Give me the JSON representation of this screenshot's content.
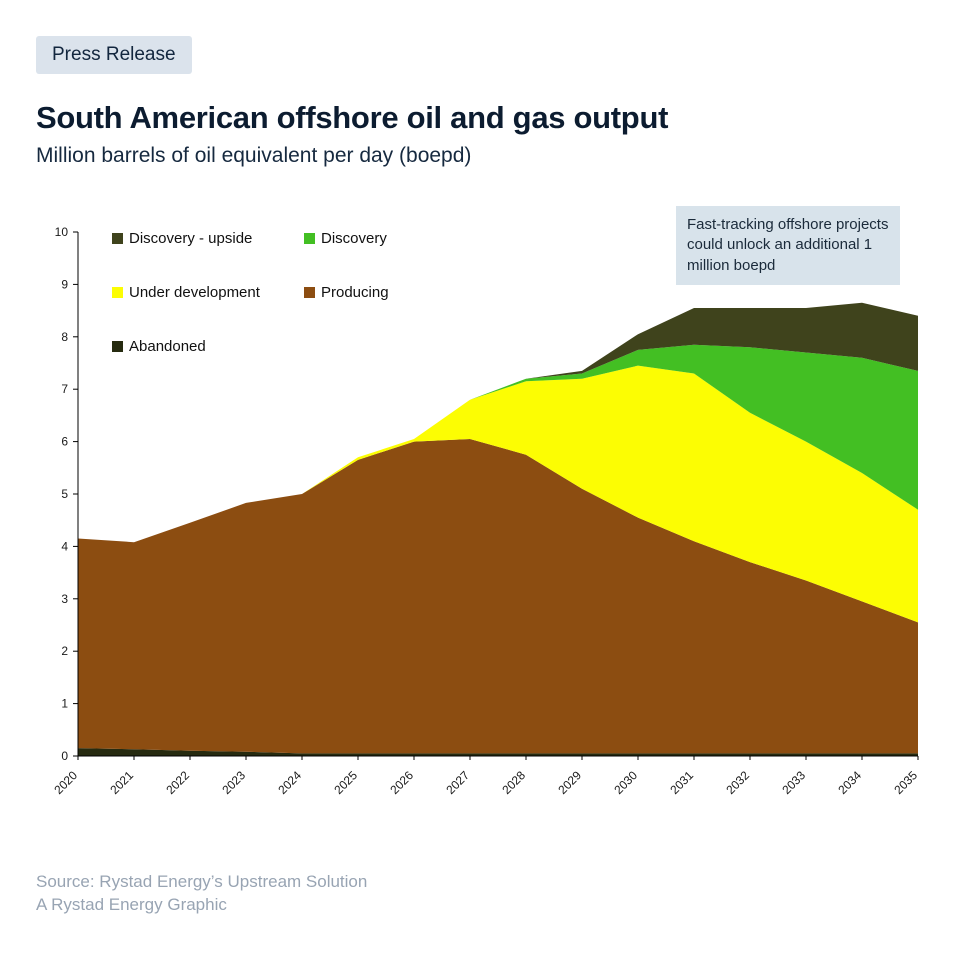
{
  "header": {
    "badge": "Press Release",
    "title": "South American offshore oil and gas output",
    "subtitle": "Million barrels of oil equivalent per day (boepd)"
  },
  "annotation": {
    "text": "Fast-tracking offshore projects could unlock an additional 1 million boepd",
    "bg": "#d8e3eb"
  },
  "legend": {
    "items": [
      {
        "label": "Discovery - upside",
        "color": "#3f431c"
      },
      {
        "label": "Discovery",
        "color": "#43bf23"
      },
      {
        "label": "Under development",
        "color": "#fcfd03"
      },
      {
        "label": "Producing",
        "color": "#8c4d11"
      },
      {
        "label": "Abandoned",
        "color": "#262b10"
      }
    ]
  },
  "footer": {
    "source_line1": "Source: Rystad Energy’s Upstream Solution",
    "source_line2": "A Rystad Energy Graphic"
  },
  "chart_data": {
    "type": "area",
    "stacked": true,
    "title": "South American offshore oil and gas output",
    "ylabel": "Million barrels of oil equivalent per day (boepd)",
    "ylim": [
      0,
      10
    ],
    "yticks": [
      0,
      1,
      2,
      3,
      4,
      5,
      6,
      7,
      8,
      9,
      10
    ],
    "grid": false,
    "legend_position": "inside-top-left",
    "categories": [
      "2020",
      "2021",
      "2022",
      "2023",
      "2024",
      "2025",
      "2026",
      "2027",
      "2028",
      "2029",
      "2030",
      "2031",
      "2032",
      "2033",
      "2034",
      "2035"
    ],
    "series": [
      {
        "name": "Abandoned",
        "color": "#262b10",
        "values": [
          0.15,
          0.13,
          0.1,
          0.08,
          0.05,
          0.05,
          0.05,
          0.05,
          0.05,
          0.05,
          0.05,
          0.05,
          0.05,
          0.05,
          0.05,
          0.05
        ]
      },
      {
        "name": "Producing",
        "color": "#8c4d11",
        "values": [
          4.0,
          3.95,
          4.35,
          4.75,
          4.95,
          5.6,
          5.95,
          6.0,
          5.7,
          5.05,
          4.5,
          4.05,
          3.65,
          3.3,
          2.9,
          2.5
        ]
      },
      {
        "name": "Under development",
        "color": "#fcfd03",
        "values": [
          0,
          0,
          0,
          0,
          0,
          0.05,
          0.05,
          0.75,
          1.4,
          2.1,
          2.9,
          3.2,
          2.85,
          2.65,
          2.45,
          2.15
        ]
      },
      {
        "name": "Discovery",
        "color": "#43bf23",
        "values": [
          0,
          0,
          0,
          0,
          0,
          0,
          0,
          0,
          0.05,
          0.1,
          0.3,
          0.55,
          1.25,
          1.7,
          2.2,
          2.65
        ]
      },
      {
        "name": "Discovery - upside",
        "color": "#3f431c",
        "values": [
          0,
          0,
          0,
          0,
          0,
          0,
          0,
          0,
          0,
          0.05,
          0.3,
          0.7,
          0.75,
          0.85,
          1.05,
          1.05
        ]
      }
    ]
  }
}
